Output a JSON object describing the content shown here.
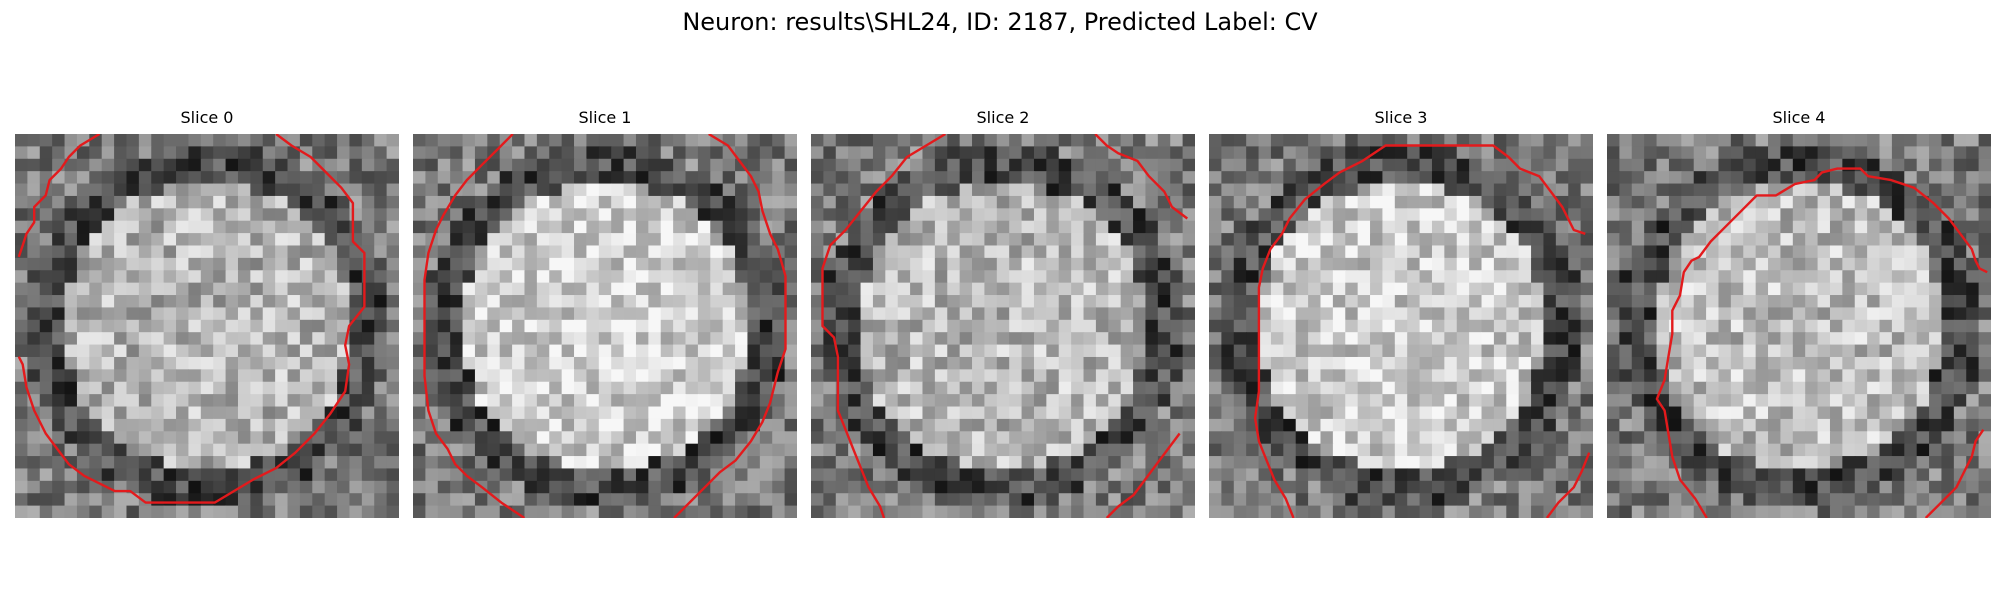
{
  "figure": {
    "title": "Neuron: results\\SHL24, ID: 2187, Predicted Label: CV"
  },
  "colors": {
    "contour": "#e31a1c",
    "background": "#ffffff"
  },
  "colormap": "gray",
  "grid_size": 31,
  "slices": [
    {
      "title": "Slice 0",
      "seed": 11,
      "brightness": 0.7,
      "dark_ring": true,
      "contours": [
        [
          [
            0.22,
            0.0
          ],
          [
            0.17,
            0.03
          ],
          [
            0.14,
            0.06
          ],
          [
            0.12,
            0.09
          ],
          [
            0.09,
            0.12
          ],
          [
            0.08,
            0.16
          ],
          [
            0.05,
            0.19
          ],
          [
            0.05,
            0.23
          ],
          [
            0.03,
            0.26
          ],
          [
            0.02,
            0.29
          ],
          [
            0.01,
            0.32
          ]
        ],
        [
          [
            0.68,
            0.0
          ],
          [
            0.72,
            0.03
          ],
          [
            0.77,
            0.06
          ],
          [
            0.81,
            0.1
          ],
          [
            0.85,
            0.14
          ],
          [
            0.88,
            0.18
          ],
          [
            0.88,
            0.22
          ],
          [
            0.88,
            0.28
          ],
          [
            0.91,
            0.31
          ],
          [
            0.91,
            0.38
          ],
          [
            0.91,
            0.45
          ],
          [
            0.87,
            0.5
          ],
          [
            0.86,
            0.55
          ],
          [
            0.87,
            0.6
          ],
          [
            0.86,
            0.67
          ],
          [
            0.82,
            0.73
          ],
          [
            0.78,
            0.78
          ],
          [
            0.73,
            0.83
          ],
          [
            0.68,
            0.87
          ],
          [
            0.62,
            0.9
          ],
          [
            0.57,
            0.93
          ],
          [
            0.52,
            0.96
          ],
          [
            0.48,
            0.96
          ],
          [
            0.38,
            0.96
          ],
          [
            0.34,
            0.96
          ],
          [
            0.3,
            0.93
          ],
          [
            0.26,
            0.93
          ],
          [
            0.22,
            0.91
          ],
          [
            0.18,
            0.89
          ],
          [
            0.14,
            0.86
          ],
          [
            0.11,
            0.82
          ],
          [
            0.08,
            0.78
          ],
          [
            0.05,
            0.72
          ],
          [
            0.03,
            0.66
          ],
          [
            0.02,
            0.6
          ],
          [
            0.01,
            0.58
          ]
        ]
      ]
    },
    {
      "title": "Slice 1",
      "seed": 23,
      "brightness": 0.82,
      "dark_ring": true,
      "contours": [
        [
          [
            0.26,
            0.0
          ],
          [
            0.22,
            0.04
          ],
          [
            0.18,
            0.08
          ],
          [
            0.14,
            0.12
          ],
          [
            0.11,
            0.16
          ],
          [
            0.08,
            0.21
          ],
          [
            0.06,
            0.25
          ],
          [
            0.04,
            0.31
          ],
          [
            0.03,
            0.38
          ],
          [
            0.03,
            0.45
          ],
          [
            0.03,
            0.55
          ],
          [
            0.03,
            0.63
          ],
          [
            0.04,
            0.72
          ],
          [
            0.06,
            0.78
          ],
          [
            0.09,
            0.82
          ],
          [
            0.11,
            0.86
          ],
          [
            0.14,
            0.89
          ],
          [
            0.18,
            0.92
          ],
          [
            0.23,
            0.96
          ],
          [
            0.29,
            1.0
          ]
        ],
        [
          [
            0.77,
            0.0
          ],
          [
            0.82,
            0.03
          ],
          [
            0.85,
            0.07
          ],
          [
            0.88,
            0.11
          ],
          [
            0.9,
            0.15
          ],
          [
            0.91,
            0.2
          ],
          [
            0.93,
            0.26
          ],
          [
            0.95,
            0.3
          ],
          [
            0.97,
            0.37
          ],
          [
            0.97,
            0.46
          ],
          [
            0.97,
            0.56
          ],
          [
            0.95,
            0.62
          ],
          [
            0.93,
            0.7
          ],
          [
            0.91,
            0.75
          ],
          [
            0.88,
            0.8
          ],
          [
            0.84,
            0.85
          ],
          [
            0.8,
            0.88
          ],
          [
            0.76,
            0.92
          ],
          [
            0.72,
            0.96
          ],
          [
            0.68,
            1.0
          ]
        ]
      ]
    },
    {
      "title": "Slice 2",
      "seed": 37,
      "brightness": 0.72,
      "dark_ring": true,
      "contours": [
        [
          [
            0.35,
            0.0
          ],
          [
            0.3,
            0.03
          ],
          [
            0.25,
            0.06
          ],
          [
            0.21,
            0.11
          ],
          [
            0.17,
            0.15
          ],
          [
            0.13,
            0.2
          ],
          [
            0.09,
            0.25
          ],
          [
            0.05,
            0.29
          ],
          [
            0.03,
            0.35
          ],
          [
            0.03,
            0.42
          ],
          [
            0.03,
            0.5
          ],
          [
            0.06,
            0.53
          ],
          [
            0.07,
            0.58
          ],
          [
            0.07,
            0.64
          ],
          [
            0.07,
            0.72
          ],
          [
            0.09,
            0.77
          ],
          [
            0.11,
            0.82
          ],
          [
            0.13,
            0.87
          ],
          [
            0.15,
            0.92
          ],
          [
            0.18,
            0.97
          ],
          [
            0.19,
            1.0
          ]
        ],
        [
          [
            0.74,
            0.0
          ],
          [
            0.77,
            0.03
          ],
          [
            0.8,
            0.05
          ],
          [
            0.85,
            0.07
          ],
          [
            0.88,
            0.11
          ],
          [
            0.92,
            0.15
          ],
          [
            0.94,
            0.19
          ],
          [
            0.98,
            0.22
          ]
        ],
        [
          [
            0.77,
            1.0
          ],
          [
            0.8,
            0.97
          ],
          [
            0.84,
            0.94
          ],
          [
            0.87,
            0.9
          ],
          [
            0.9,
            0.86
          ],
          [
            0.93,
            0.82
          ],
          [
            0.96,
            0.78
          ]
        ]
      ]
    },
    {
      "title": "Slice 3",
      "seed": 53,
      "brightness": 0.8,
      "dark_ring": true,
      "contours": [
        [
          [
            0.22,
            1.0
          ],
          [
            0.2,
            0.95
          ],
          [
            0.17,
            0.9
          ],
          [
            0.15,
            0.85
          ],
          [
            0.13,
            0.8
          ],
          [
            0.12,
            0.74
          ],
          [
            0.13,
            0.67
          ],
          [
            0.13,
            0.58
          ],
          [
            0.13,
            0.48
          ],
          [
            0.13,
            0.4
          ],
          [
            0.14,
            0.35
          ],
          [
            0.16,
            0.3
          ],
          [
            0.19,
            0.26
          ],
          [
            0.21,
            0.22
          ],
          [
            0.25,
            0.17
          ],
          [
            0.3,
            0.13
          ],
          [
            0.34,
            0.1
          ],
          [
            0.4,
            0.07
          ],
          [
            0.46,
            0.03
          ],
          [
            0.55,
            0.03
          ],
          [
            0.65,
            0.03
          ],
          [
            0.74,
            0.03
          ],
          [
            0.78,
            0.06
          ],
          [
            0.81,
            0.09
          ],
          [
            0.86,
            0.11
          ],
          [
            0.89,
            0.15
          ],
          [
            0.92,
            0.19
          ],
          [
            0.95,
            0.25
          ],
          [
            0.98,
            0.26
          ]
        ],
        [
          [
            0.88,
            1.0
          ],
          [
            0.91,
            0.96
          ],
          [
            0.95,
            0.92
          ],
          [
            0.97,
            0.88
          ],
          [
            0.99,
            0.83
          ]
        ]
      ]
    },
    {
      "title": "Slice 4",
      "seed": 71,
      "brightness": 0.74,
      "dark_ring": true,
      "contours": [
        [
          [
            0.26,
            1.0
          ],
          [
            0.23,
            0.95
          ],
          [
            0.19,
            0.9
          ],
          [
            0.17,
            0.84
          ],
          [
            0.16,
            0.78
          ],
          [
            0.15,
            0.72
          ],
          [
            0.13,
            0.69
          ],
          [
            0.15,
            0.64
          ],
          [
            0.16,
            0.58
          ],
          [
            0.17,
            0.52
          ],
          [
            0.17,
            0.46
          ],
          [
            0.19,
            0.42
          ],
          [
            0.2,
            0.36
          ],
          [
            0.22,
            0.33
          ],
          [
            0.24,
            0.32
          ],
          [
            0.27,
            0.28
          ],
          [
            0.31,
            0.24
          ],
          [
            0.35,
            0.2
          ],
          [
            0.39,
            0.16
          ],
          [
            0.44,
            0.16
          ],
          [
            0.49,
            0.13
          ],
          [
            0.54,
            0.12
          ],
          [
            0.56,
            0.1
          ],
          [
            0.6,
            0.09
          ],
          [
            0.66,
            0.09
          ],
          [
            0.68,
            0.11
          ],
          [
            0.74,
            0.12
          ],
          [
            0.8,
            0.14
          ],
          [
            0.85,
            0.18
          ],
          [
            0.89,
            0.22
          ],
          [
            0.92,
            0.26
          ],
          [
            0.95,
            0.3
          ],
          [
            0.96,
            0.33
          ],
          [
            0.97,
            0.35
          ],
          [
            0.99,
            0.36
          ]
        ],
        [
          [
            0.83,
            1.0
          ],
          [
            0.87,
            0.96
          ],
          [
            0.91,
            0.92
          ],
          [
            0.93,
            0.88
          ],
          [
            0.95,
            0.84
          ],
          [
            0.96,
            0.8
          ],
          [
            0.98,
            0.77
          ]
        ]
      ]
    }
  ]
}
